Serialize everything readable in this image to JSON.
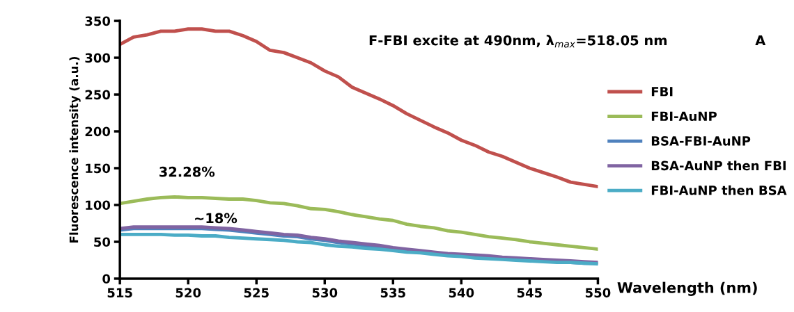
{
  "chart_data": {
    "type": "line",
    "title": "F-FBI excite at 490nm, λ$_{max}$=518.05 nm",
    "xlabel": "Wavelength (nm)",
    "ylabel": "Fluorescence intensity (a.u.)",
    "x": [
      515,
      516,
      517,
      518,
      519,
      520,
      521,
      522,
      523,
      524,
      525,
      526,
      527,
      528,
      529,
      530,
      531,
      532,
      533,
      534,
      535,
      536,
      537,
      538,
      539,
      540,
      541,
      542,
      543,
      544,
      545,
      546,
      547,
      548,
      549,
      550
    ],
    "series": [
      {
        "name": "FBI",
        "color": "#c0504d",
        "values": [
          318,
          328,
          331,
          336,
          336,
          339,
          339,
          336,
          336,
          330,
          322,
          310,
          307,
          300,
          293,
          282,
          274,
          260,
          252,
          244,
          235,
          224,
          215,
          206,
          198,
          188,
          181,
          172,
          166,
          158,
          150,
          144,
          138,
          131,
          128,
          125
        ]
      },
      {
        "name": "FBI-AuNP",
        "color": "#9bbb59",
        "values": [
          102,
          105,
          108,
          110,
          111,
          110,
          110,
          109,
          108,
          108,
          106,
          103,
          102,
          99,
          95,
          94,
          91,
          87,
          84,
          81,
          79,
          74,
          71,
          69,
          65,
          63,
          60,
          57,
          55,
          53,
          50,
          48,
          46,
          44,
          42,
          40
        ]
      },
      {
        "name": "BSA-FBI-AuNP",
        "color": "#4f81bd",
        "values": [
          66,
          68,
          68,
          68,
          68,
          68,
          68,
          67,
          66,
          64,
          62,
          60,
          58,
          57,
          54,
          52,
          49,
          47,
          45,
          43,
          40,
          38,
          36,
          34,
          32,
          31,
          30,
          29,
          27,
          26,
          25,
          24,
          23,
          22,
          21,
          21
        ]
      },
      {
        "name": "BSA-AuNP then FBI",
        "color": "#8064a2",
        "values": [
          68,
          70,
          70,
          70,
          70,
          70,
          70,
          69,
          68,
          66,
          64,
          62,
          60,
          59,
          56,
          54,
          51,
          49,
          47,
          45,
          42,
          40,
          38,
          36,
          34,
          33,
          32,
          31,
          29,
          28,
          27,
          26,
          25,
          24,
          23,
          22
        ]
      },
      {
        "name": "FBI-AuNP then BSA",
        "color": "#4bacc6",
        "values": [
          60,
          60,
          60,
          60,
          59,
          59,
          58,
          58,
          56,
          55,
          54,
          53,
          52,
          50,
          49,
          46,
          44,
          43,
          41,
          40,
          38,
          36,
          35,
          33,
          31,
          30,
          28,
          27,
          26,
          25,
          24,
          23,
          22,
          22,
          21,
          20
        ]
      }
    ],
    "annotations": [
      "32.28%",
      "~18%",
      "A"
    ],
    "xlim": [
      515,
      550
    ],
    "xticks": [
      515,
      520,
      525,
      530,
      535,
      540,
      545,
      550
    ],
    "ylim": [
      0,
      350
    ],
    "yticks": [
      0,
      50,
      100,
      150,
      200,
      250,
      300,
      350
    ],
    "grid": false,
    "legend": "right",
    "marker": "none",
    "line_style": "solid"
  }
}
